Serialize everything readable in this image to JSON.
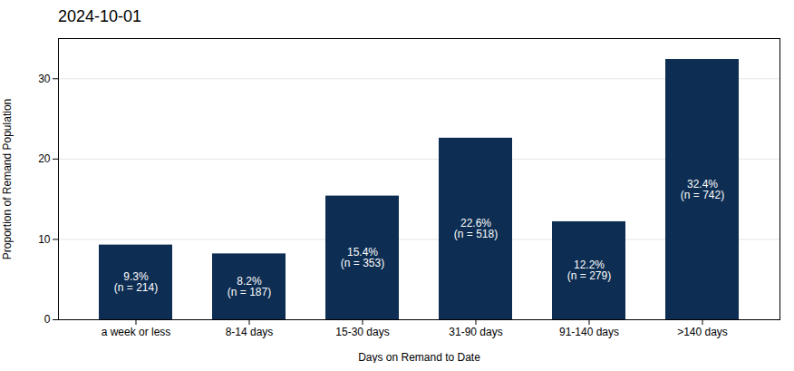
{
  "chart_data": {
    "type": "bar",
    "title": "2024-10-01",
    "categories": [
      "a week or less",
      "8-14 days",
      "15-30 days",
      "31-90 days",
      "91-140 days",
      ">140 days"
    ],
    "values": [
      9.3,
      8.2,
      15.4,
      22.6,
      12.2,
      32.4
    ],
    "value_labels": [
      "9.3%\n(n = 214)",
      "8.2%\n(n = 187)",
      "15.4%\n(n = 353)",
      "22.6%\n(n = 518)",
      "12.2%\n(n = 279)",
      "32.4%\n(n = 742)"
    ],
    "data_labels": true,
    "color": "#0d2d52",
    "xlabel": "Days on Remand to Date",
    "ylabel": "Proportion of Remand Population",
    "ylim": [
      0,
      35
    ],
    "yticks": [
      0,
      10,
      20,
      30
    ],
    "grid": true
  }
}
